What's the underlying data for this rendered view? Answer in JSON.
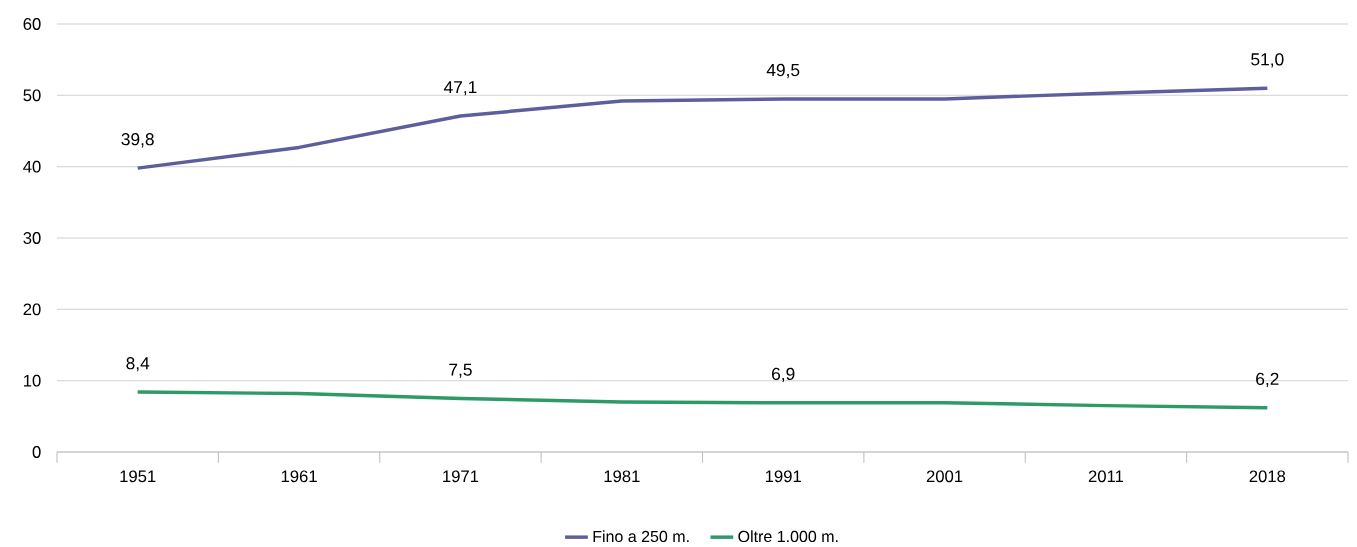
{
  "chart_data": {
    "type": "line",
    "categories": [
      "1951",
      "1961",
      "1971",
      "1981",
      "1991",
      "2001",
      "2011",
      "2018"
    ],
    "series": [
      {
        "name": "Fino a 250 m.",
        "color": "#5d5e9c",
        "values": [
          39.8,
          42.7,
          47.1,
          49.2,
          49.5,
          49.5,
          50.3,
          51.0
        ],
        "value_labels": [
          "39,8",
          null,
          "47,1",
          null,
          "49,5",
          null,
          null,
          "51,0"
        ]
      },
      {
        "name": "Oltre 1.000 m.",
        "color": "#2e9a68",
        "values": [
          8.4,
          8.2,
          7.5,
          7.0,
          6.9,
          6.9,
          6.5,
          6.2
        ],
        "value_labels": [
          "8,4",
          null,
          "7,5",
          null,
          "6,9",
          null,
          null,
          "6,2"
        ]
      }
    ],
    "ylim": [
      0,
      60
    ],
    "yticks": [
      0,
      10,
      20,
      30,
      40,
      50,
      60
    ],
    "grid": "y",
    "legend": "bottom",
    "marker": "none",
    "line_style": "solid"
  }
}
